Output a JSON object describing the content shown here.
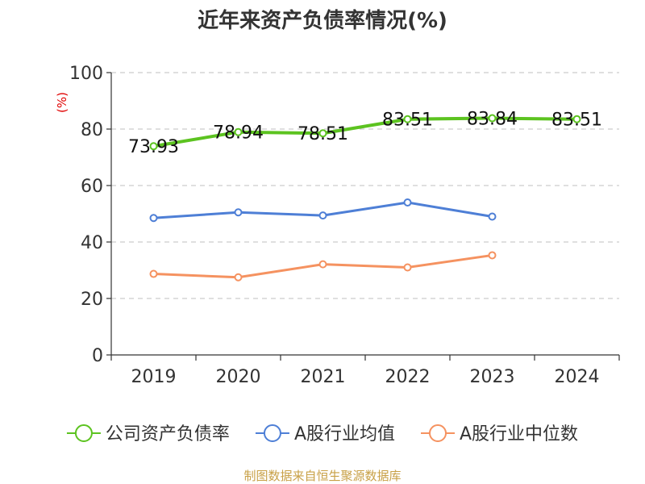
{
  "chart_data": {
    "type": "line",
    "title": "近年来资产负债率情况(%)",
    "ylabel": "(%)",
    "xlabel": "",
    "categories": [
      "2019",
      "2020",
      "2021",
      "2022",
      "2023",
      "2024"
    ],
    "ylim": [
      0,
      100
    ],
    "yticks": [
      0,
      20,
      40,
      60,
      80,
      100
    ],
    "grid": true,
    "legend_position": "bottom",
    "series": [
      {
        "name": "公司资产负债率",
        "values": [
          73.93,
          78.94,
          78.51,
          83.51,
          83.84,
          83.51
        ],
        "labels": [
          "73.93",
          "78.94",
          "78.51",
          "83.51",
          "83.84",
          "83.51"
        ],
        "color": "#5cc320"
      },
      {
        "name": "A股行业均值",
        "values": [
          48.5,
          50.5,
          49.4,
          54.0,
          49.0,
          null
        ],
        "color": "#4e7fd6"
      },
      {
        "name": "A股行业中位数",
        "values": [
          28.7,
          27.5,
          32.1,
          31.0,
          35.3,
          null
        ],
        "color": "#f59260"
      }
    ],
    "source": "制图数据来自恒生聚源数据库"
  }
}
